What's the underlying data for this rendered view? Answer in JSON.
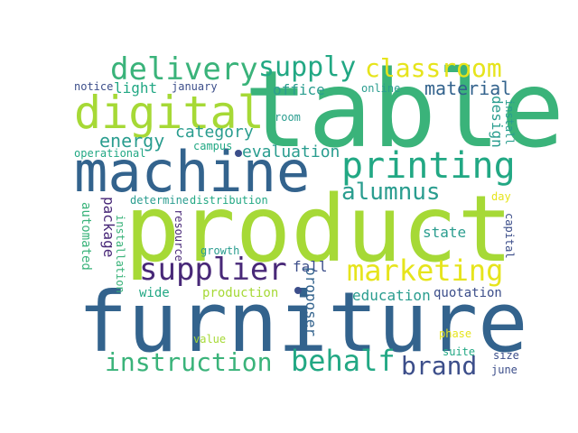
{
  "palette": {
    "lime": "#a6d936",
    "green": "#3ab37a",
    "teal": "#2a9d8f",
    "blue": "#33638d",
    "navy": "#3c4e8a",
    "purple": "#482878",
    "yellow": "#e6e41c",
    "sea": "#22a884"
  },
  "words": [
    {
      "text": "table"
    },
    {
      "text": "product"
    },
    {
      "text": "furniture"
    },
    {
      "text": "machine"
    },
    {
      "text": "digital"
    },
    {
      "text": "printing"
    },
    {
      "text": "delivery"
    },
    {
      "text": "supply"
    },
    {
      "text": "classroom"
    },
    {
      "text": "marketing"
    },
    {
      "text": "supplier"
    },
    {
      "text": "behalf"
    },
    {
      "text": "instruction"
    },
    {
      "text": "brand"
    },
    {
      "text": "alumnus"
    },
    {
      "text": "material"
    },
    {
      "text": "energy"
    },
    {
      "text": "category"
    },
    {
      "text": "evaluation"
    },
    {
      "text": "office"
    },
    {
      "text": "light"
    },
    {
      "text": "notice"
    },
    {
      "text": "january"
    },
    {
      "text": "online"
    },
    {
      "text": "design"
    },
    {
      "text": "install"
    },
    {
      "text": "room"
    },
    {
      "text": "campus"
    },
    {
      "text": "operational"
    },
    {
      "text": "determine"
    },
    {
      "text": "distribution"
    },
    {
      "text": "package"
    },
    {
      "text": "automated"
    },
    {
      "text": "installation"
    },
    {
      "text": "resource"
    },
    {
      "text": "growth"
    },
    {
      "text": "fall"
    },
    {
      "text": "proposer"
    },
    {
      "text": "state"
    },
    {
      "text": "capital"
    },
    {
      "text": "day"
    },
    {
      "text": "wide"
    },
    {
      "text": "production"
    },
    {
      "text": "education"
    },
    {
      "text": "quotation"
    },
    {
      "text": "value"
    },
    {
      "text": "phase"
    },
    {
      "text": "suite"
    },
    {
      "text": "size"
    },
    {
      "text": "june"
    }
  ]
}
